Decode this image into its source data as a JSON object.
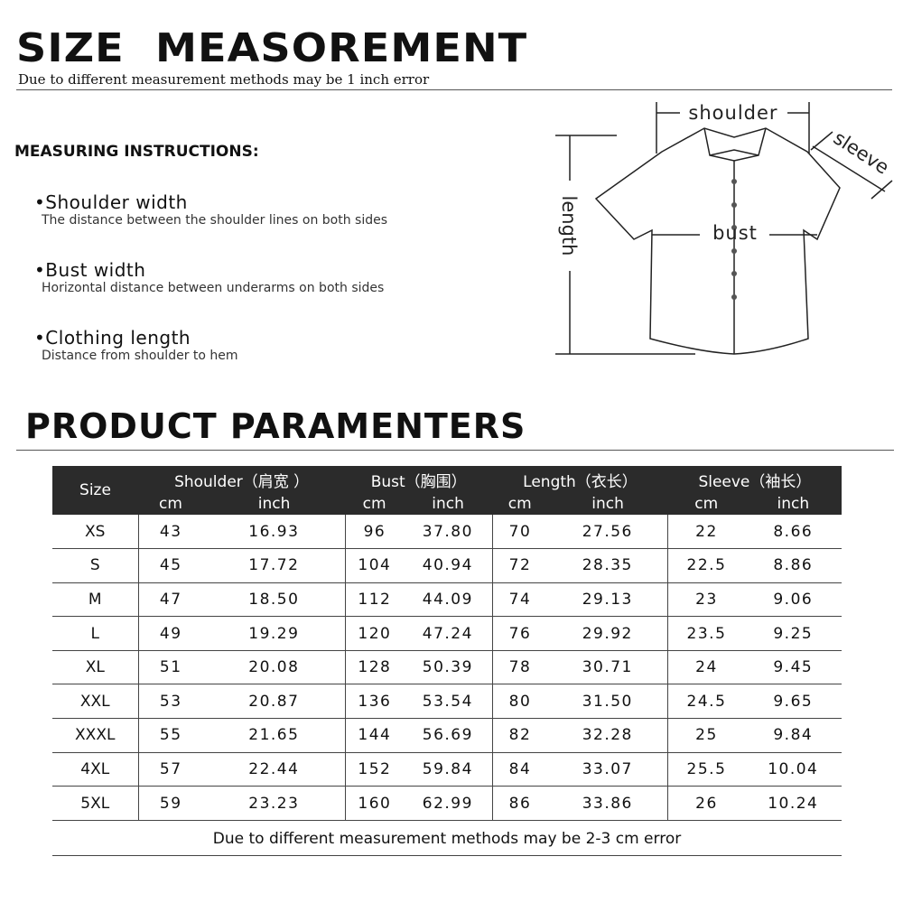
{
  "header": {
    "title": "SIZE  MEASOREMENT",
    "subtitle": "Due to different measurement methods may be 1 inch error"
  },
  "instructions": {
    "title": "MEASURING INSTRUCTIONS:",
    "items": [
      {
        "label": "•Shoulder width",
        "desc": "The distance between the shoulder lines on both sides"
      },
      {
        "label": "•Bust width",
        "desc": "Horizontal distance between underarms on both sides"
      },
      {
        "label": "•Clothing length",
        "desc": "Distance from shoulder to hem"
      }
    ]
  },
  "diagram": {
    "shoulder": "shoulder",
    "sleeve": "sleeve",
    "length": "length",
    "bust": "bust"
  },
  "params": {
    "title": "PRODUCT PARAMENTERS",
    "size_header": "Size",
    "groups": [
      "Shoulder（肩宽 ）",
      "Bust（胸围）",
      "Length（衣长）",
      "Sleeve（袖长）"
    ],
    "units": [
      "cm",
      "inch",
      "cm",
      "inch",
      "cm",
      "inch",
      "cm",
      "inch"
    ],
    "rows": [
      [
        "XS",
        "43",
        "16.93",
        "96",
        "37.80",
        "70",
        "27.56",
        "22",
        "8.66"
      ],
      [
        "S",
        "45",
        "17.72",
        "104",
        "40.94",
        "72",
        "28.35",
        "22.5",
        "8.86"
      ],
      [
        "M",
        "47",
        "18.50",
        "112",
        "44.09",
        "74",
        "29.13",
        "23",
        "9.06"
      ],
      [
        "L",
        "49",
        "19.29",
        "120",
        "47.24",
        "76",
        "29.92",
        "23.5",
        "9.25"
      ],
      [
        "XL",
        "51",
        "20.08",
        "128",
        "50.39",
        "78",
        "30.71",
        "24",
        "9.45"
      ],
      [
        "XXL",
        "53",
        "20.87",
        "136",
        "53.54",
        "80",
        "31.50",
        "24.5",
        "9.65"
      ],
      [
        "XXXL",
        "55",
        "21.65",
        "144",
        "56.69",
        "82",
        "32.28",
        "25",
        "9.84"
      ],
      [
        "4XL",
        "57",
        "22.44",
        "152",
        "59.84",
        "84",
        "33.07",
        "25.5",
        "10.04"
      ],
      [
        "5XL",
        "59",
        "23.23",
        "160",
        "62.99",
        "86",
        "33.86",
        "26",
        "10.24"
      ]
    ],
    "footer": "Due to different measurement methods may be 2-3 cm error"
  }
}
